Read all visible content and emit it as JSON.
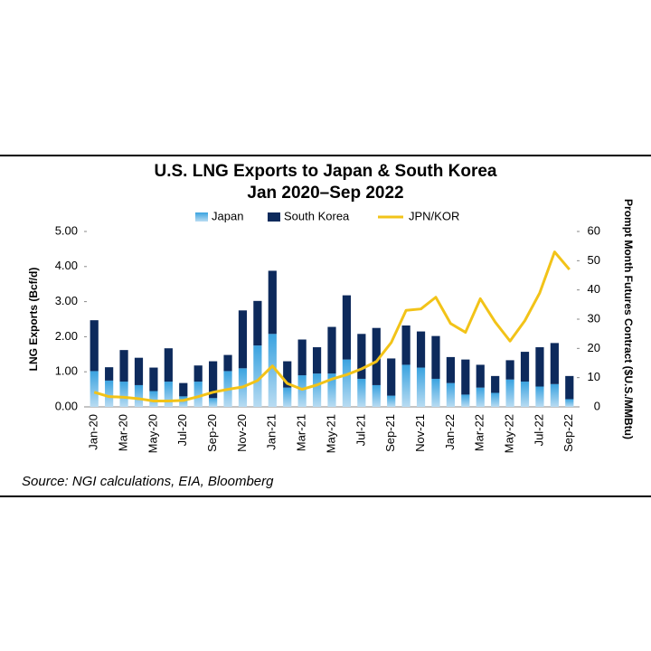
{
  "chart_data": {
    "type": "bar_line",
    "title": "U.S. LNG Exports to Japan & South Korea",
    "subtitle": "Jan 2020–Sep 2022",
    "y_label": "LNG Exports (Bcf/d)",
    "y2_label": "Prompt Month Futures Contract ($U.S./MMBtu)",
    "source": "Source: NGI calculations, EIA, Bloomberg",
    "categories": [
      "Jan-20",
      null,
      "Mar-20",
      null,
      "May-20",
      null,
      "Jul-20",
      null,
      "Sep-20",
      null,
      "Nov-20",
      null,
      "Jan-21",
      null,
      "Mar-21",
      null,
      "May-21",
      null,
      "Jul-21",
      null,
      "Sep-21",
      null,
      "Nov-21",
      null,
      "Jan-22",
      null,
      "Mar-22",
      null,
      "May-22",
      null,
      "Jul-22",
      null,
      "Sep-22"
    ],
    "series": [
      {
        "name": "Japan",
        "color": "#5bb4e5",
        "values": [
          1.02,
          0.75,
          0.72,
          0.62,
          0.45,
          0.72,
          0.3,
          0.72,
          0.25,
          1.02,
          1.1,
          1.75,
          2.08,
          0.55,
          0.9,
          0.95,
          0.95,
          1.35,
          0.8,
          0.62,
          0.32,
          1.2,
          1.12,
          0.8,
          0.68,
          0.35,
          0.55,
          0.4,
          0.78,
          0.72,
          0.58,
          0.65,
          0.22
        ]
      },
      {
        "name": "South Korea",
        "color": "#0d2a5c",
        "values": [
          1.45,
          0.38,
          0.9,
          0.78,
          0.67,
          0.95,
          0.38,
          0.46,
          1.05,
          0.46,
          1.65,
          1.27,
          1.8,
          0.75,
          1.02,
          0.75,
          1.33,
          1.83,
          1.28,
          1.63,
          1.06,
          1.12,
          1.03,
          1.22,
          0.74,
          1.0,
          0.65,
          0.48,
          0.55,
          0.85,
          1.12,
          1.17,
          0.66
        ]
      },
      {
        "name": "JPN/KOR",
        "color": "#f2c318",
        "axis": "y2",
        "values": [
          5,
          3.5,
          3.3,
          2.8,
          2,
          2,
          2.2,
          3.5,
          5,
          6,
          6.8,
          9,
          14,
          8,
          6,
          7.5,
          9.5,
          11,
          13,
          15.5,
          22,
          33,
          33.5,
          37.5,
          28.5,
          25.5,
          37,
          29,
          22.5,
          29.5,
          39,
          53,
          47
        ]
      }
    ],
    "ylim": [
      0,
      5
    ],
    "yticks": [
      {
        "value": 0,
        "label": "0.00"
      },
      {
        "value": 1,
        "label": "1.00"
      },
      {
        "value": 2,
        "label": "2.00"
      },
      {
        "value": 3,
        "label": "3.00"
      },
      {
        "value": 4,
        "label": "4.00"
      },
      {
        "value": 5,
        "label": "5.00"
      }
    ],
    "y2lim": [
      0,
      60
    ],
    "y2ticks": [
      0,
      10,
      20,
      30,
      40,
      50,
      60
    ]
  }
}
